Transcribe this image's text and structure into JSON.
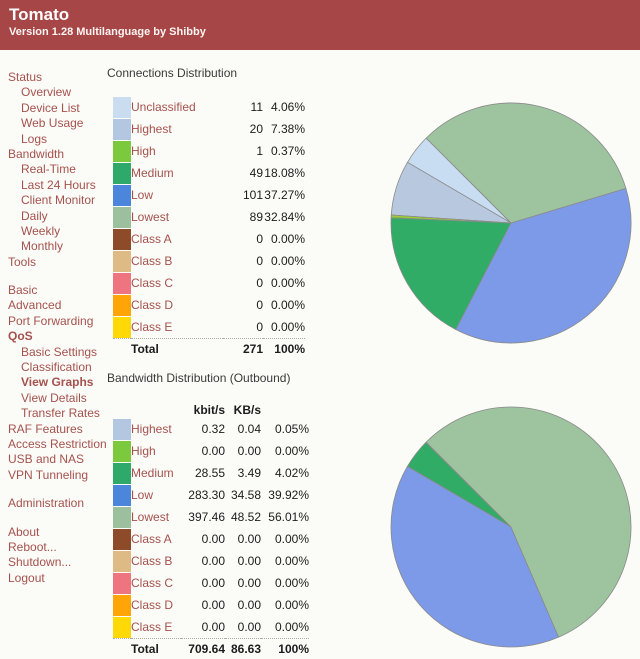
{
  "colors": {
    "header_bg": "#A64646",
    "link": "#A5524E",
    "text_dark": "#1C1C1C",
    "title": "#3A3A3A",
    "page_bg": "#FBFBF7"
  },
  "header": {
    "title": "Tomato",
    "subtitle": "Version 1.28 Multilanguage by Shibby"
  },
  "sidebar": {
    "items": [
      {
        "label": "Status",
        "indent": 0
      },
      {
        "label": "Overview",
        "indent": 1
      },
      {
        "label": "Device List",
        "indent": 1
      },
      {
        "label": "Web Usage",
        "indent": 1
      },
      {
        "label": "Logs",
        "indent": 1
      },
      {
        "label": "Bandwidth",
        "indent": 0
      },
      {
        "label": "Real-Time",
        "indent": 1
      },
      {
        "label": "Last 24 Hours",
        "indent": 1
      },
      {
        "label": "Client Monitor",
        "indent": 1
      },
      {
        "label": "Daily",
        "indent": 1
      },
      {
        "label": "Weekly",
        "indent": 1
      },
      {
        "label": "Monthly",
        "indent": 1
      },
      {
        "label": "Tools",
        "indent": 0
      },
      {
        "label": "Basic",
        "indent": 0,
        "gap": true
      },
      {
        "label": "Advanced",
        "indent": 0
      },
      {
        "label": "Port Forwarding",
        "indent": 0
      },
      {
        "label": "QoS",
        "indent": 0,
        "bold": true
      },
      {
        "label": "Basic Settings",
        "indent": 1
      },
      {
        "label": "Classification",
        "indent": 1
      },
      {
        "label": "View Graphs",
        "indent": 1,
        "bold": true
      },
      {
        "label": "View Details",
        "indent": 1
      },
      {
        "label": "Transfer Rates",
        "indent": 1
      },
      {
        "label": "RAF Features",
        "indent": 0
      },
      {
        "label": "Access Restriction",
        "indent": 0
      },
      {
        "label": "USB and NAS",
        "indent": 0
      },
      {
        "label": "VPN Tunneling",
        "indent": 0
      },
      {
        "label": "Administration",
        "indent": 0,
        "gap": true
      },
      {
        "label": "About",
        "indent": 0,
        "gap": true
      },
      {
        "label": "Reboot...",
        "indent": 0
      },
      {
        "label": "Shutdown...",
        "indent": 0
      },
      {
        "label": "Logout",
        "indent": 0
      }
    ]
  },
  "tables": {
    "connections": {
      "title": "Connections Distribution",
      "rows": [
        {
          "label": "Unclassified",
          "count": "11",
          "pct": "4.06%",
          "swatch": "#C9DCF0"
        },
        {
          "label": "Highest",
          "count": "20",
          "pct": "7.38%",
          "swatch": "#B3C8E0"
        },
        {
          "label": "High",
          "count": "1",
          "pct": "0.37%",
          "swatch": "#7CC93E"
        },
        {
          "label": "Medium",
          "count": "49",
          "pct": "18.08%",
          "swatch": "#2FA969"
        },
        {
          "label": "Low",
          "count": "101",
          "pct": "37.27%",
          "swatch": "#4C86DC"
        },
        {
          "label": "Lowest",
          "count": "89",
          "pct": "32.84%",
          "swatch": "#9CBF9D"
        },
        {
          "label": "Class A",
          "count": "0",
          "pct": "0.00%",
          "swatch": "#8E4B29"
        },
        {
          "label": "Class B",
          "count": "0",
          "pct": "0.00%",
          "swatch": "#DEBA85"
        },
        {
          "label": "Class C",
          "count": "0",
          "pct": "0.00%",
          "swatch": "#EE7480"
        },
        {
          "label": "Class D",
          "count": "0",
          "pct": "0.00%",
          "swatch": "#FFA507"
        },
        {
          "label": "Class E",
          "count": "0",
          "pct": "0.00%",
          "swatch": "#FFD808"
        }
      ],
      "total": {
        "label": "Total",
        "count": "271",
        "pct": "100%"
      }
    },
    "bandwidth": {
      "title": "Bandwidth Distribution (Outbound)",
      "col_headers": [
        "kbit/s",
        "KB/s"
      ],
      "rows": [
        {
          "label": "Highest",
          "kbit": "0.32",
          "kbs": "0.04",
          "pct": "0.05%",
          "swatch": "#B3C8E0"
        },
        {
          "label": "High",
          "kbit": "0.00",
          "kbs": "0.00",
          "pct": "0.00%",
          "swatch": "#7CC93E"
        },
        {
          "label": "Medium",
          "kbit": "28.55",
          "kbs": "3.49",
          "pct": "4.02%",
          "swatch": "#2FA969"
        },
        {
          "label": "Low",
          "kbit": "283.30",
          "kbs": "34.58",
          "pct": "39.92%",
          "swatch": "#4C86DC"
        },
        {
          "label": "Lowest",
          "kbit": "397.46",
          "kbs": "48.52",
          "pct": "56.01%",
          "swatch": "#9CBF9D"
        },
        {
          "label": "Class A",
          "kbit": "0.00",
          "kbs": "0.00",
          "pct": "0.00%",
          "swatch": "#8E4B29"
        },
        {
          "label": "Class B",
          "kbit": "0.00",
          "kbs": "0.00",
          "pct": "0.00%",
          "swatch": "#DEBA85"
        },
        {
          "label": "Class C",
          "kbit": "0.00",
          "kbs": "0.00",
          "pct": "0.00%",
          "swatch": "#EE7480"
        },
        {
          "label": "Class D",
          "kbit": "0.00",
          "kbs": "0.00",
          "pct": "0.00%",
          "swatch": "#FFA507"
        },
        {
          "label": "Class E",
          "kbit": "0.00",
          "kbs": "0.00",
          "pct": "0.00%",
          "swatch": "#FFD808"
        }
      ],
      "total": {
        "label": "Total",
        "kbit": "709.64",
        "kbs": "86.63",
        "pct": "100%"
      }
    }
  },
  "chart_data": [
    {
      "type": "pie",
      "title": "Connections Distribution",
      "start_angle_deg": 135,
      "direction": "counterclockwise",
      "stroke": "#8A8A8A",
      "total": 271,
      "slices": [
        {
          "label": "Unclassified",
          "value": 11,
          "pct": 4.06,
          "color": "#C8DCF2"
        },
        {
          "label": "Highest",
          "value": 20,
          "pct": 7.38,
          "color": "#B7C8DF"
        },
        {
          "label": "High",
          "value": 1,
          "pct": 0.37,
          "color": "#9ACC33"
        },
        {
          "label": "Medium",
          "value": 49,
          "pct": 18.08,
          "color": "#30AC67"
        },
        {
          "label": "Low",
          "value": 101,
          "pct": 37.27,
          "color": "#7D9AE8"
        },
        {
          "label": "Lowest",
          "value": 89,
          "pct": 32.84,
          "color": "#9DC49E"
        },
        {
          "label": "Class A",
          "value": 0,
          "pct": 0,
          "color": "#8E4B29"
        },
        {
          "label": "Class B",
          "value": 0,
          "pct": 0,
          "color": "#DEBA85"
        },
        {
          "label": "Class C",
          "value": 0,
          "pct": 0,
          "color": "#EE7480"
        },
        {
          "label": "Class D",
          "value": 0,
          "pct": 0,
          "color": "#FFA507"
        },
        {
          "label": "Class E",
          "value": 0,
          "pct": 0,
          "color": "#FFD808"
        }
      ]
    },
    {
      "type": "pie",
      "title": "Bandwidth Distribution (Outbound)",
      "start_angle_deg": 135,
      "direction": "counterclockwise",
      "stroke": "#8A8A8A",
      "total_kbit": 709.64,
      "slices": [
        {
          "label": "Highest",
          "kbit": 0.32,
          "pct": 0.05,
          "color": "#B7C8DF"
        },
        {
          "label": "High",
          "kbit": 0.0,
          "pct": 0,
          "color": "#9ACC33"
        },
        {
          "label": "Medium",
          "kbit": 28.55,
          "pct": 4.02,
          "color": "#30AC67"
        },
        {
          "label": "Low",
          "kbit": 283.3,
          "pct": 39.92,
          "color": "#7D9AE8"
        },
        {
          "label": "Lowest",
          "kbit": 397.46,
          "pct": 56.01,
          "color": "#9DC49E"
        },
        {
          "label": "Class A",
          "kbit": 0.0,
          "pct": 0,
          "color": "#8E4B29"
        },
        {
          "label": "Class B",
          "kbit": 0.0,
          "pct": 0,
          "color": "#DEBA85"
        },
        {
          "label": "Class C",
          "kbit": 0.0,
          "pct": 0,
          "color": "#EE7480"
        },
        {
          "label": "Class D",
          "kbit": 0.0,
          "pct": 0,
          "color": "#FFA507"
        },
        {
          "label": "Class E",
          "kbit": 0.0,
          "pct": 0,
          "color": "#FFD808"
        }
      ]
    }
  ]
}
